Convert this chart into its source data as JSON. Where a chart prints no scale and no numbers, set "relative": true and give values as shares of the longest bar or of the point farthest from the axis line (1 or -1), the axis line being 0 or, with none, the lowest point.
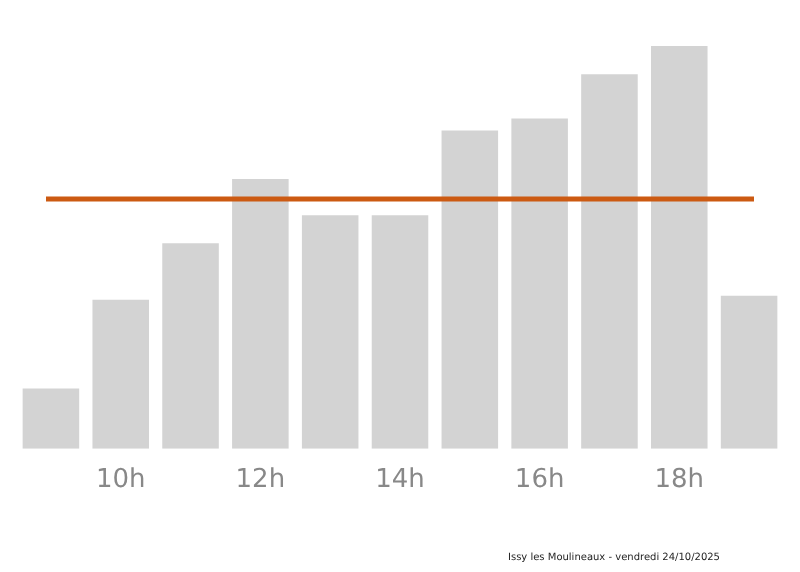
{
  "chart_data": {
    "type": "bar",
    "relative": true,
    "categories": [
      null,
      "10h",
      null,
      "12h",
      null,
      "14h",
      null,
      "16h",
      null,
      "18h",
      null
    ],
    "values": [
      0.15,
      0.37,
      0.51,
      0.67,
      0.58,
      0.58,
      0.79,
      0.82,
      0.93,
      1,
      0.38
    ],
    "color": "#d3d3d3",
    "ref_lines": [
      {
        "axis": "y",
        "value": 0.62,
        "color": "#cc5a12"
      }
    ],
    "grid": false,
    "legend": false,
    "annotations": [
      "Issy les Moulineaux - vendredi 24/10/2025"
    ]
  }
}
